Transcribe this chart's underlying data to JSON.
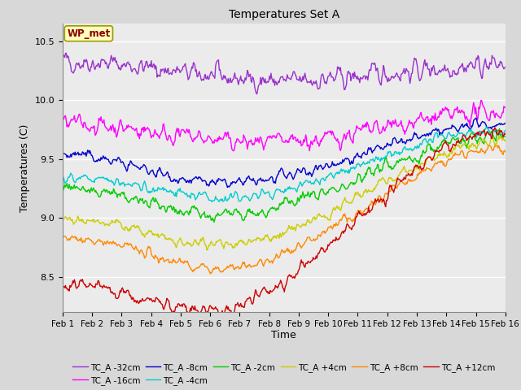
{
  "title": "Temperatures Set A",
  "xlabel": "Time",
  "ylabel": "Temperatures (C)",
  "ylim": [
    8.2,
    10.65
  ],
  "xlim": [
    0,
    15
  ],
  "xtick_labels": [
    "Feb 1",
    "Feb 2",
    "Feb 3",
    "Feb 4",
    "Feb 5",
    "Feb 6",
    "Feb 7",
    "Feb 8",
    "Feb 9",
    "Feb 10",
    "Feb 11",
    "Feb 12",
    "Feb 13",
    "Feb 14",
    "Feb 15",
    "Feb 16"
  ],
  "wp_met_label": "WP_met",
  "series": [
    {
      "label": "TC_A -32cm",
      "color": "#9933CC",
      "start": 10.33,
      "dip": 10.16,
      "end": 10.3,
      "dip_day": 7.5,
      "noise": 0.04,
      "rise_start": 7.5
    },
    {
      "label": "TC_A -16cm",
      "color": "#FF00FF",
      "start": 9.8,
      "dip": 9.63,
      "end": 9.9,
      "dip_day": 7.0,
      "noise": 0.035,
      "rise_start": 7.0
    },
    {
      "label": "TC_A -8cm",
      "color": "#0000CC",
      "start": 9.54,
      "dip": 9.29,
      "end": 9.8,
      "dip_day": 5.5,
      "noise": 0.02,
      "rise_start": 5.5
    },
    {
      "label": "TC_A -4cm",
      "color": "#00CCCC",
      "start": 9.35,
      "dip": 9.17,
      "end": 9.75,
      "dip_day": 5.5,
      "noise": 0.02,
      "rise_start": 5.5
    },
    {
      "label": "TC_A -2cm",
      "color": "#00CC00",
      "start": 9.25,
      "dip": 9.02,
      "end": 9.7,
      "dip_day": 5.5,
      "noise": 0.025,
      "rise_start": 5.5
    },
    {
      "label": "TC_A +4cm",
      "color": "#CCCC00",
      "start": 9.0,
      "dip": 8.77,
      "end": 9.65,
      "dip_day": 5.5,
      "noise": 0.02,
      "rise_start": 5.5
    },
    {
      "label": "TC_A +8cm",
      "color": "#FF8800",
      "start": 8.83,
      "dip": 8.58,
      "end": 9.6,
      "dip_day": 5.5,
      "noise": 0.02,
      "rise_start": 5.5
    },
    {
      "label": "TC_A +12cm",
      "color": "#CC0000",
      "start": 8.45,
      "dip": 8.22,
      "end": 9.75,
      "dip_day": 5.0,
      "noise": 0.025,
      "rise_start": 5.0
    }
  ],
  "axes_bg": "#EBEBEB",
  "grid_color": "#FFFFFF",
  "linewidth": 1.0
}
